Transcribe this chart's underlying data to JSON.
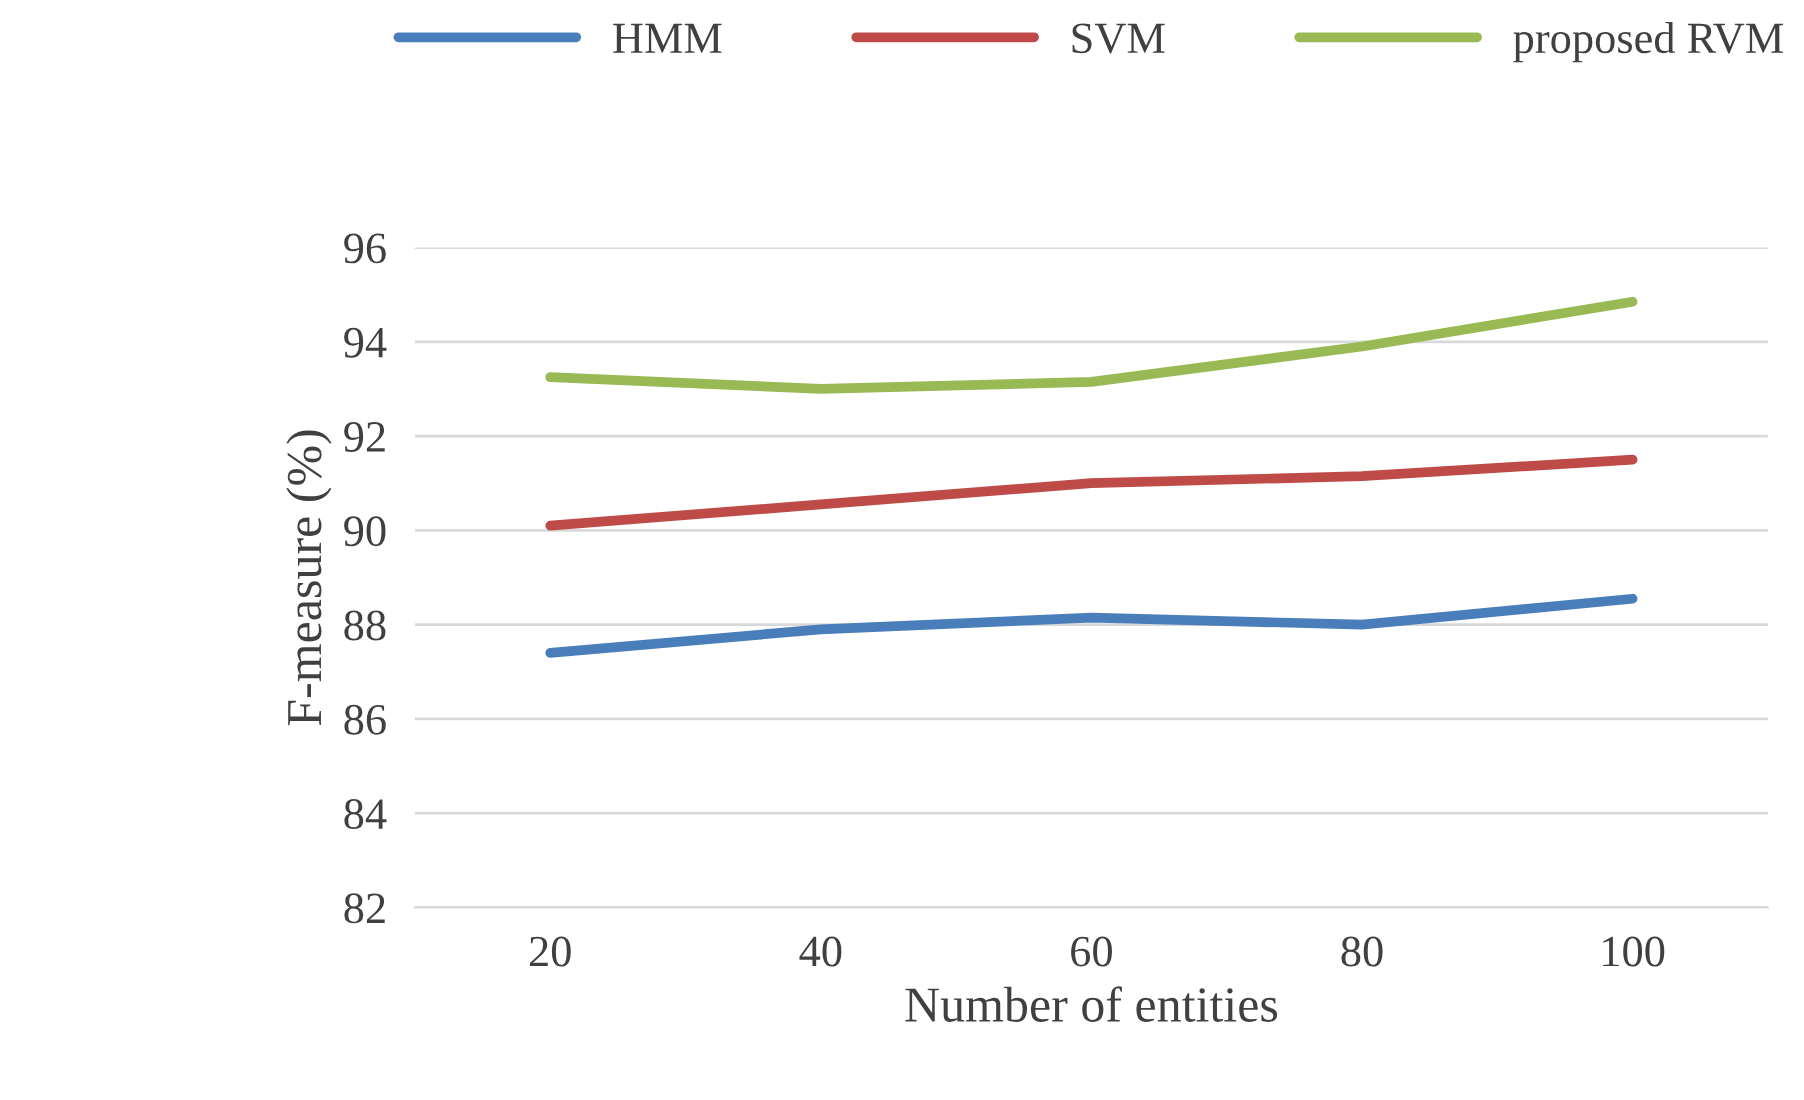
{
  "chart_data": {
    "type": "line",
    "xlabel": "Number of entities",
    "ylabel": "F-measure (%)",
    "categories": [
      "20",
      "40",
      "60",
      "80",
      "100"
    ],
    "series": [
      {
        "name": "HMM",
        "color": "#4a7ebb",
        "values": [
          87.4,
          87.9,
          88.15,
          88.0,
          88.55
        ]
      },
      {
        "name": "SVM",
        "color": "#be4b48",
        "values": [
          90.1,
          90.55,
          91.0,
          91.15,
          91.5
        ]
      },
      {
        "name": "proposed RVM",
        "color": "#98b954",
        "values": [
          93.25,
          93.0,
          93.15,
          93.9,
          94.85
        ]
      }
    ],
    "ylim": [
      82,
      96
    ],
    "yticks": [
      82,
      84,
      86,
      88,
      90,
      92,
      94,
      96
    ],
    "grid": "y",
    "legend": "top",
    "marker": "none",
    "line_style": "solid"
  }
}
